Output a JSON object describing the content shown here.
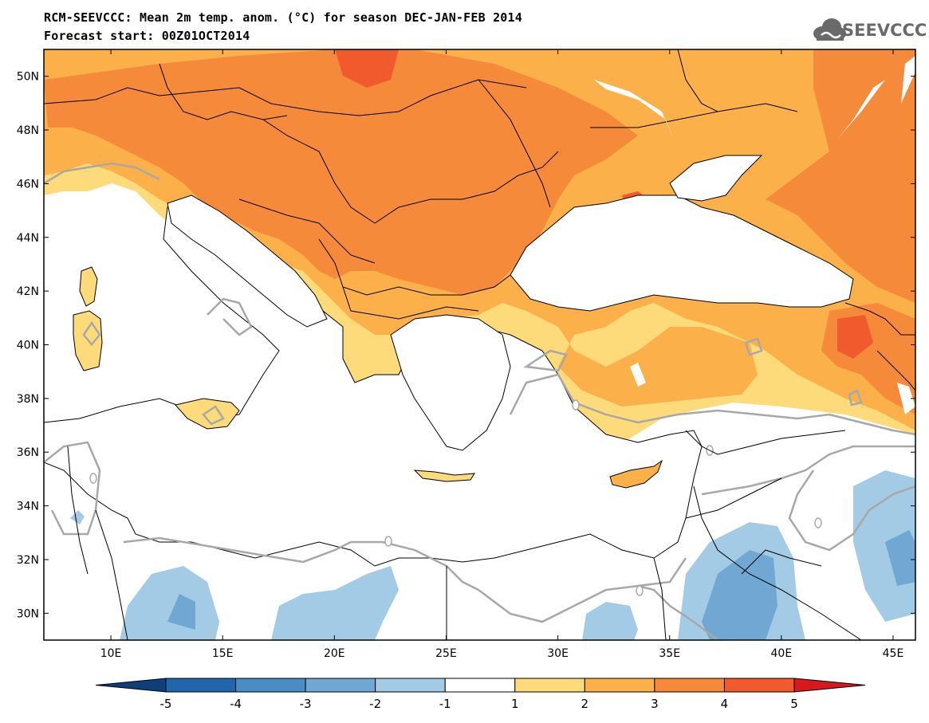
{
  "title": {
    "line1": "RCM-SEEVCCC: Mean 2m temp. anom. (°C) for season DEC-JAN-FEB 2014",
    "line2": "Forecast start: 00Z01OCT2014"
  },
  "logo": {
    "text": "SEEVCCC",
    "icon": "cloud-icon"
  },
  "map": {
    "lon_range": [
      7,
      46
    ],
    "lat_range": [
      29,
      51
    ],
    "lat_ticks": [
      "50N",
      "48N",
      "46N",
      "44N",
      "42N",
      "40N",
      "38N",
      "36N",
      "34N",
      "32N",
      "30N"
    ],
    "lat_tick_values": [
      50,
      48,
      46,
      44,
      42,
      40,
      38,
      36,
      34,
      32,
      30
    ],
    "lon_ticks": [
      "10E",
      "15E",
      "20E",
      "25E",
      "30E",
      "35E",
      "40E",
      "45E"
    ],
    "lon_tick_values": [
      10,
      15,
      20,
      25,
      30,
      35,
      40,
      45
    ],
    "contour_label": "0"
  },
  "colorbar": {
    "labels": [
      "-5",
      "-4",
      "-3",
      "-2",
      "-1",
      "1",
      "2",
      "3",
      "4",
      "5"
    ],
    "colors": [
      "#2166ac",
      "#4a8dc4",
      "#70a8d3",
      "#a3cbe5",
      "#ffffff",
      "#fddb7a",
      "#fbb04a",
      "#f58a3a",
      "#f05a2d"
    ],
    "under_color": "#0d3f7a",
    "over_color": "#d7191c"
  },
  "palette": {
    "warm1": "#fddb7a",
    "warm2": "#fbb04a",
    "warm3": "#f58a3a",
    "warm4": "#f05a2d",
    "warm5": "#d7191c",
    "cool1": "#a3cbe5",
    "cool2": "#70a8d3"
  }
}
